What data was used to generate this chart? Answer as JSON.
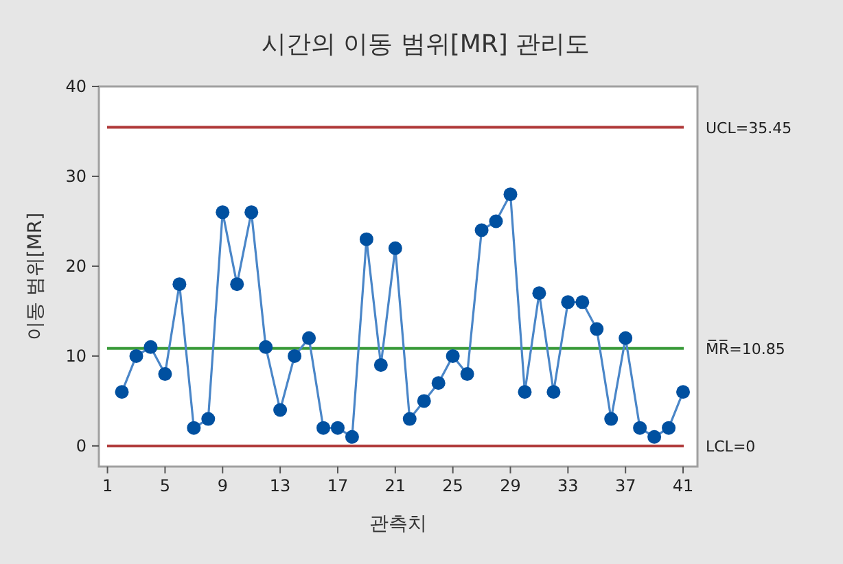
{
  "chart_data": {
    "type": "line",
    "title": "시간의 이동 범위[MR] 관리도",
    "xlabel": "관측치",
    "ylabel": "이동 범위[MR]",
    "x": [
      2,
      3,
      4,
      5,
      6,
      7,
      8,
      9,
      10,
      11,
      12,
      13,
      14,
      15,
      16,
      17,
      18,
      19,
      20,
      21,
      22,
      23,
      24,
      25,
      26,
      27,
      28,
      29,
      30,
      31,
      32,
      33,
      34,
      35,
      36,
      37,
      38,
      39,
      40,
      41
    ],
    "series": [
      {
        "color": "#0050a0",
        "values": [
          6,
          10,
          11,
          8,
          18,
          2,
          3,
          26,
          18,
          26,
          11,
          4,
          10,
          12,
          2,
          2,
          1,
          23,
          9,
          22,
          3,
          5,
          7,
          10,
          8,
          24,
          25,
          28,
          6,
          17,
          6,
          16,
          16,
          13,
          3,
          12,
          2,
          1,
          2,
          6
        ]
      }
    ],
    "marker": "circle",
    "line_style": "solid",
    "xlim": [
      0.4,
      42
    ],
    "xticks": [
      1,
      5,
      9,
      13,
      17,
      21,
      25,
      29,
      33,
      37,
      41
    ],
    "ylim": [
      -2.3,
      40
    ],
    "yticks": [
      0,
      10,
      20,
      30,
      40
    ],
    "ref_lines": [
      {
        "axis": "y",
        "value": 35.45,
        "label": "UCL=35.45",
        "color": "#b03a3a"
      },
      {
        "axis": "y",
        "value": 10.85,
        "label": "M̅R̅=10.85",
        "color": "#3a9a3a"
      },
      {
        "axis": "y",
        "value": 0,
        "label": "LCL=0",
        "color": "#b03a3a"
      }
    ],
    "grid": false
  }
}
